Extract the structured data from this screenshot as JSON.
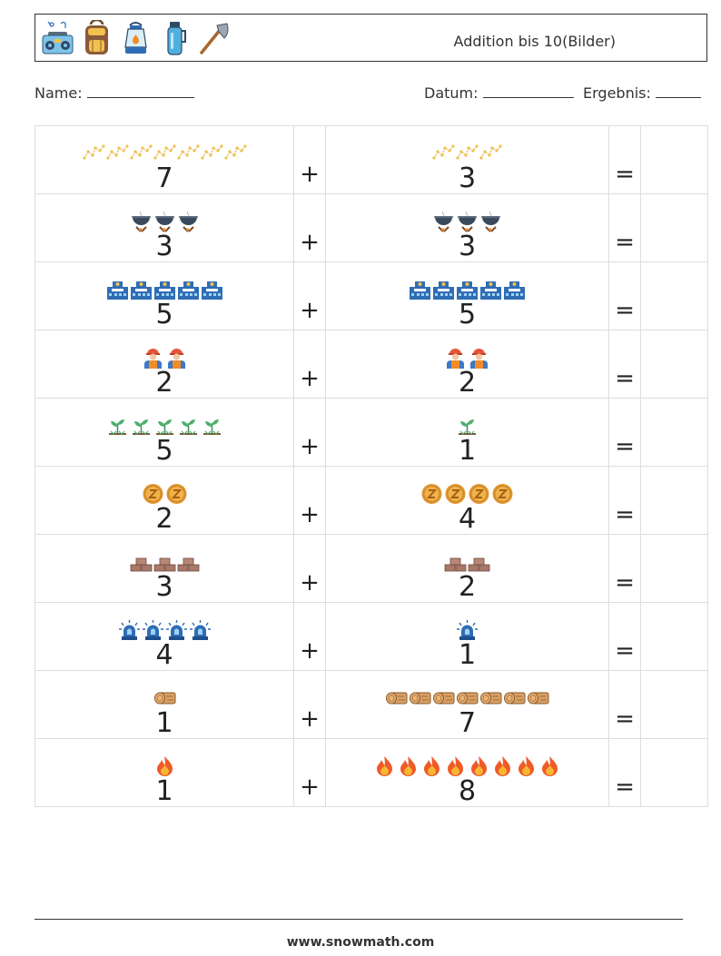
{
  "header": {
    "title": "Addition bis 10(Bilder)",
    "icons": [
      "boombox-icon",
      "backpack-icon",
      "lantern-icon",
      "thermos-icon",
      "axe-icon"
    ]
  },
  "info": {
    "name_label": "Name:",
    "date_label": "Datum:",
    "result_label": "Ergebnis:"
  },
  "problems": [
    {
      "a": {
        "value": "7",
        "icon": "constellation-icon"
      },
      "op": "+",
      "b": {
        "value": "3",
        "icon": "constellation-icon"
      },
      "eq": "="
    },
    {
      "a": {
        "value": "3",
        "icon": "cooking-pot-icon"
      },
      "op": "+",
      "b": {
        "value": "3",
        "icon": "cooking-pot-icon"
      },
      "eq": "="
    },
    {
      "a": {
        "value": "5",
        "icon": "police-station-icon"
      },
      "op": "+",
      "b": {
        "value": "5",
        "icon": "police-station-icon"
      },
      "eq": "="
    },
    {
      "a": {
        "value": "2",
        "icon": "worker-icon"
      },
      "op": "+",
      "b": {
        "value": "2",
        "icon": "worker-icon"
      },
      "eq": "="
    },
    {
      "a": {
        "value": "5",
        "icon": "sprout-icon"
      },
      "op": "+",
      "b": {
        "value": "1",
        "icon": "sprout-icon"
      },
      "eq": "="
    },
    {
      "a": {
        "value": "2",
        "icon": "coin-icon"
      },
      "op": "+",
      "b": {
        "value": "4",
        "icon": "coin-icon"
      },
      "eq": "="
    },
    {
      "a": {
        "value": "3",
        "icon": "bricks-icon"
      },
      "op": "+",
      "b": {
        "value": "2",
        "icon": "bricks-icon"
      },
      "eq": "="
    },
    {
      "a": {
        "value": "4",
        "icon": "siren-icon"
      },
      "op": "+",
      "b": {
        "value": "1",
        "icon": "siren-icon"
      },
      "eq": "="
    },
    {
      "a": {
        "value": "1",
        "icon": "log-icon"
      },
      "op": "+",
      "b": {
        "value": "7",
        "icon": "log-icon"
      },
      "eq": "="
    },
    {
      "a": {
        "value": "1",
        "icon": "fire-icon"
      },
      "op": "+",
      "b": {
        "value": "8",
        "icon": "fire-icon"
      },
      "eq": "="
    }
  ],
  "footer": {
    "url": "www.snowmath.com"
  }
}
